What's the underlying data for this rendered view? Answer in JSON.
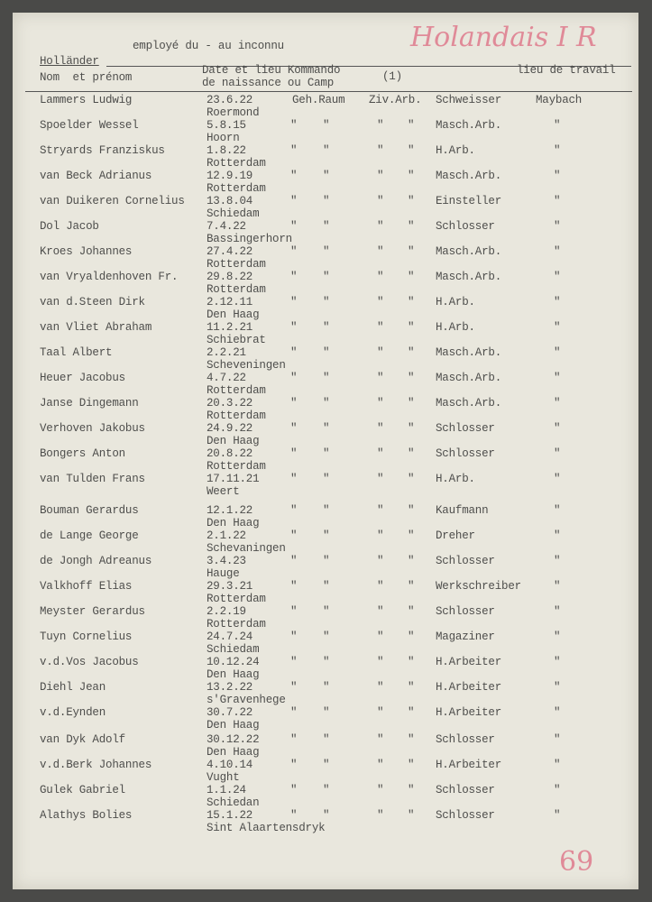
{
  "header": {
    "subtitle": "employé du - au inconnu",
    "nationality": "Holländer",
    "annotation": "Holandais I R",
    "col_name": "Nom  et prénom",
    "col_date_1": "Date et lieu Kommando",
    "col_date_2": "de naissance ou Camp",
    "col_note": "(1)",
    "col_work": "lieu de travail"
  },
  "rows": [
    {
      "name": "Lammers Ludwig",
      "date": "23.6.22",
      "place": "Roermond",
      "c1": "Geh.Raum",
      "c2": "",
      "c3": "Ziv.Arb.",
      "c4": "",
      "job": "Schweisser",
      "work": "Maybach"
    },
    {
      "name": "Spoelder Wessel",
      "date": "5.8.15",
      "place": "Hoorn",
      "c1": "\"",
      "c2": "\"",
      "c3": "\"",
      "c4": "\"",
      "job": "Masch.Arb.",
      "work": "\""
    },
    {
      "name": "Stryards Franziskus",
      "date": "1.8.22",
      "place": "Rotterdam",
      "c1": "\"",
      "c2": "\"",
      "c3": "\"",
      "c4": "\"",
      "job": "H.Arb.",
      "work": "\""
    },
    {
      "name": "van Beck Adrianus",
      "date": "12.9.19",
      "place": "Rotterdam",
      "c1": "\"",
      "c2": "\"",
      "c3": "\"",
      "c4": "\"",
      "job": "Masch.Arb.",
      "work": "\""
    },
    {
      "name": "van Duikeren Cornelius",
      "date": "13.8.04",
      "place": "Schiedam",
      "c1": "\"",
      "c2": "\"",
      "c3": "\"",
      "c4": "\"",
      "job": "Einsteller",
      "work": "\""
    },
    {
      "name": "Dol Jacob",
      "date": "7.4.22",
      "place": "Bassingerhorn",
      "c1": "\"",
      "c2": "\"",
      "c3": "\"",
      "c4": "\"",
      "job": "Schlosser",
      "work": "\""
    },
    {
      "name": "Kroes Johannes",
      "date": "27.4.22",
      "place": "Rotterdam",
      "c1": "\"",
      "c2": "\"",
      "c3": "\"",
      "c4": "\"",
      "job": "Masch.Arb.",
      "work": "\""
    },
    {
      "name": "van Vryaldenhoven Fr.",
      "date": "29.8.22",
      "place": "Rotterdam",
      "c1": "\"",
      "c2": "\"",
      "c3": "\"",
      "c4": "\"",
      "job": "Masch.Arb.",
      "work": "\""
    },
    {
      "name": "van d.Steen Dirk",
      "date": "2.12.11",
      "place": "Den Haag",
      "c1": "\"",
      "c2": "\"",
      "c3": "\"",
      "c4": "\"",
      "job": "H.Arb.",
      "work": "\""
    },
    {
      "name": "van Vliet Abraham",
      "date": "11.2.21",
      "place": "Schiebrat",
      "c1": "\"",
      "c2": "\"",
      "c3": "\"",
      "c4": "\"",
      "job": "H.Arb.",
      "work": "\""
    },
    {
      "name": "Taal Albert",
      "date": "2.2.21",
      "place": "Scheveningen",
      "c1": "\"",
      "c2": "\"",
      "c3": "\"",
      "c4": "\"",
      "job": "Masch.Arb.",
      "work": "\""
    },
    {
      "name": "Heuer Jacobus",
      "date": "4.7.22",
      "place": "Rotterdam",
      "c1": "\"",
      "c2": "\"",
      "c3": "\"",
      "c4": "\"",
      "job": "Masch.Arb.",
      "work": "\""
    },
    {
      "name": "Janse Dingemann",
      "date": "20.3.22",
      "place": "Rotterdam",
      "c1": "\"",
      "c2": "\"",
      "c3": "\"",
      "c4": "\"",
      "job": "Masch.Arb.",
      "work": "\""
    },
    {
      "name": "Verhoven Jakobus",
      "date": "24.9.22",
      "place": "Den Haag",
      "c1": "\"",
      "c2": "\"",
      "c3": "\"",
      "c4": "\"",
      "job": "Schlosser",
      "work": "\""
    },
    {
      "name": "Bongers Anton",
      "date": "20.8.22",
      "place": "Rotterdam",
      "c1": "\"",
      "c2": "\"",
      "c3": "\"",
      "c4": "\"",
      "job": "Schlosser",
      "work": "\""
    },
    {
      "name": "van Tulden Frans",
      "date": "17.11.21",
      "place": "Weert",
      "c1": "\"",
      "c2": "\"",
      "c3": "\"",
      "c4": "\"",
      "job": "H.Arb.",
      "work": "\""
    },
    {
      "name": "Bouman Gerardus",
      "date": "12.1.22",
      "place": "Den Haag",
      "c1": "\"",
      "c2": "\"",
      "c3": "\"",
      "c4": "\"",
      "job": "Kaufmann",
      "work": "\""
    },
    {
      "name": "de Lange George",
      "date": "2.1.22",
      "place": "Schevaningen",
      "c1": "\"",
      "c2": "\"",
      "c3": "\"",
      "c4": "\"",
      "job": "Dreher",
      "work": "\""
    },
    {
      "name": "de Jongh Adreanus",
      "date": "3.4.23",
      "place": "Hauge",
      "c1": "\"",
      "c2": "\"",
      "c3": "\"",
      "c4": "\"",
      "job": "Schlosser",
      "work": "\""
    },
    {
      "name": "Valkhoff Elias",
      "date": "29.3.21",
      "place": "Rotterdam",
      "c1": "\"",
      "c2": "\"",
      "c3": "\"",
      "c4": "\"",
      "job": "Werkschreiber",
      "work": "\""
    },
    {
      "name": "Meyster Gerardus",
      "date": "2.2.19",
      "place": "Rotterdam",
      "c1": "\"",
      "c2": "\"",
      "c3": "\"",
      "c4": "\"",
      "job": "Schlosser",
      "work": "\""
    },
    {
      "name": "Tuyn Cornelius",
      "date": "24.7.24",
      "place": "Schiedam",
      "c1": "\"",
      "c2": "\"",
      "c3": "\"",
      "c4": "\"",
      "job": "Magaziner",
      "work": "\""
    },
    {
      "name": "v.d.Vos Jacobus",
      "date": "10.12.24",
      "place": "Den Haag",
      "c1": "\"",
      "c2": "\"",
      "c3": "\"",
      "c4": "\"",
      "job": "H.Arbeiter",
      "work": "\""
    },
    {
      "name": "Diehl Jean",
      "date": "13.2.22",
      "place": "s'Gravenhege",
      "c1": "\"",
      "c2": "\"",
      "c3": "\"",
      "c4": "\"",
      "job": "H.Arbeiter",
      "work": "\""
    },
    {
      "name": "v.d.Eynden",
      "date": "30.7.22",
      "place": "Den Haag",
      "c1": "\"",
      "c2": "\"",
      "c3": "\"",
      "c4": "\"",
      "job": "H.Arbeiter",
      "work": "\""
    },
    {
      "name": "van Dyk Adolf",
      "date": "30.12.22",
      "place": "Den Haag",
      "c1": "\"",
      "c2": "\"",
      "c3": "\"",
      "c4": "\"",
      "job": "Schlosser",
      "work": "\""
    },
    {
      "name": "v.d.Berk Johannes",
      "date": "4.10.14",
      "place": "Vught",
      "c1": "\"",
      "c2": "\"",
      "c3": "\"",
      "c4": "\"",
      "job": "H.Arbeiter",
      "work": "\""
    },
    {
      "name": "Gulek Gabriel",
      "date": "1.1.24",
      "place": "Schiedan",
      "c1": "\"",
      "c2": "\"",
      "c3": "\"",
      "c4": "\"",
      "job": "Schlosser",
      "work": "\""
    },
    {
      "name": "Alathys Bolies",
      "date": "15.1.22",
      "place": "Sint Alaartensdryk",
      "c1": "\"",
      "c2": "\"",
      "c3": "\"",
      "c4": "\"",
      "job": "Schlosser",
      "work": "\""
    }
  ],
  "page_number": "69"
}
